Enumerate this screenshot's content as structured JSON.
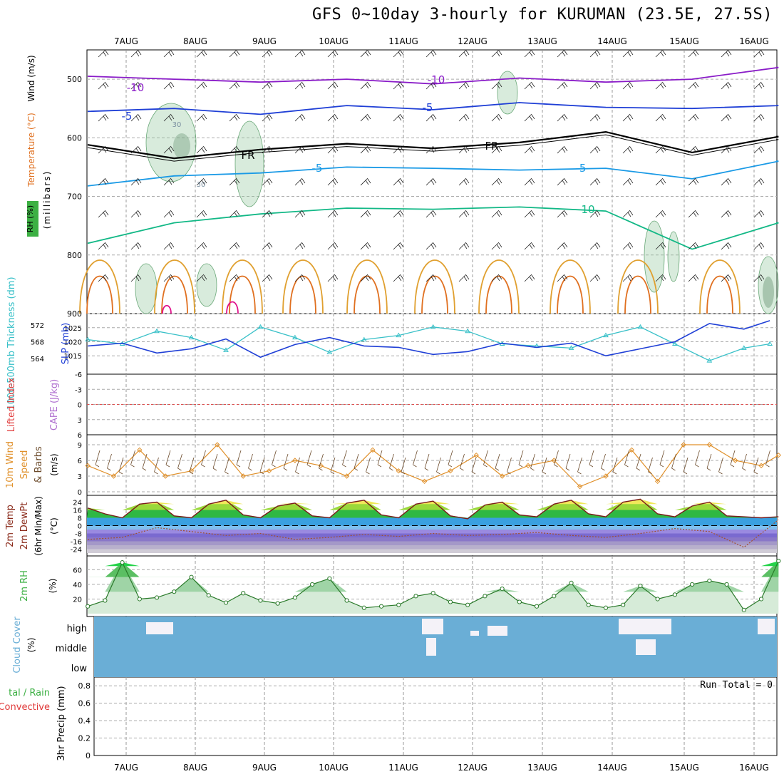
{
  "title": "GFS 0~10day 3-hourly for KURUMAN (23.5E, 27.5S)",
  "x_dates": [
    "7AUG",
    "8AUG",
    "9AUG",
    "10AUG",
    "11AUG",
    "12AUG",
    "13AUG",
    "14AUG",
    "15AUG",
    "16AUG"
  ],
  "colors": {
    "purple": "#8a1cc8",
    "blue": "#1f3fd6",
    "lightblue": "#1a9ae6",
    "teal": "#12b886",
    "orange": "#e0a030",
    "darkorange": "#e07020",
    "magenta": "#e0108a",
    "cyan": "#38c0c8",
    "slp": "#1f3fd6",
    "wind": "#e0902a",
    "rh": "#3cb043",
    "cloud": "#6aaed6",
    "dashed_red": "#e05050"
  },
  "chart_data": [
    {
      "type": "line",
      "panel": "upper-air",
      "ylabel_parts": [
        "RH (%)",
        "Temperature (°C)",
        "Wind (m/s)"
      ],
      "ylabel2": "(millibars)",
      "yticks": [
        500,
        600,
        700,
        800,
        900
      ],
      "ylim": [
        450,
        900
      ],
      "contour_labels": [
        "-10",
        "-10",
        "-5",
        "-5",
        "FR",
        "FR",
        "-5",
        "-5",
        "10",
        "30",
        "30"
      ],
      "isotherms": [
        {
          "name": "-10",
          "x": [
            0,
            10,
            20,
            30,
            40,
            50,
            60,
            70,
            80
          ],
          "p": [
            495,
            500,
            505,
            500,
            508,
            498,
            505,
            500,
            480
          ]
        },
        {
          "name": "-5",
          "x": [
            0,
            10,
            20,
            30,
            40,
            50,
            60,
            70,
            80
          ],
          "p": [
            555,
            550,
            560,
            545,
            552,
            540,
            548,
            550,
            545
          ]
        },
        {
          "name": "FR",
          "x": [
            0,
            10,
            20,
            30,
            40,
            50,
            60,
            70,
            80
          ],
          "p": [
            612,
            635,
            620,
            610,
            618,
            608,
            590,
            625,
            598
          ]
        },
        {
          "name": "5",
          "x": [
            0,
            10,
            20,
            30,
            40,
            50,
            60,
            70,
            80
          ],
          "p": [
            682,
            665,
            660,
            650,
            652,
            655,
            652,
            670,
            640
          ]
        },
        {
          "name": "10",
          "x": [
            0,
            10,
            20,
            30,
            40,
            50,
            60,
            70,
            80
          ],
          "p": [
            780,
            745,
            730,
            720,
            722,
            718,
            725,
            790,
            745
          ]
        }
      ]
    },
    {
      "type": "line",
      "panel": "thickness-slp",
      "ylabel_left": "1000-500mb Thickness (dm)",
      "ylabel_right": "SLP (mb)",
      "yticks_left": [
        572,
        568,
        564
      ],
      "yticks_right": [
        1025,
        1020,
        1015
      ],
      "series": [
        {
          "name": "Thickness",
          "unit": "dm",
          "x": [
            0,
            4,
            8,
            12,
            16,
            20,
            24,
            28,
            32,
            36,
            40,
            44,
            48,
            52,
            56,
            60,
            64,
            68,
            72,
            76,
            79
          ],
          "values": [
            568.5,
            567.5,
            570.5,
            569.0,
            566.0,
            571.5,
            569.0,
            565.5,
            568.5,
            569.5,
            571.5,
            570.5,
            567.5,
            567.0,
            566.5,
            569.5,
            571.5,
            567.5,
            563.5,
            566.5,
            567.5
          ]
        },
        {
          "name": "SLP",
          "unit": "mb",
          "x": [
            0,
            4,
            8,
            12,
            16,
            20,
            24,
            28,
            32,
            36,
            40,
            44,
            48,
            52,
            56,
            60,
            64,
            68,
            72,
            76,
            79
          ],
          "values": [
            1018.5,
            1019.5,
            1016.0,
            1017.5,
            1021.0,
            1014.5,
            1019.0,
            1021.5,
            1018.5,
            1018.0,
            1015.5,
            1016.5,
            1019.5,
            1018.0,
            1019.5,
            1015.0,
            1017.5,
            1020.0,
            1026.5,
            1024.5,
            1027.5
          ]
        }
      ]
    },
    {
      "type": "line",
      "panel": "instability",
      "ylabel_left": "Lifted Index",
      "ylabel_right": "CAPE (J/kg)",
      "yticks": [
        "-6",
        "-3",
        "0",
        "3",
        "6"
      ],
      "ylim": [
        -6,
        6
      ]
    },
    {
      "type": "line",
      "panel": "wind10m",
      "ylabel": "10m Wind Speed & Barbs",
      "unit": "(m/s)",
      "yticks": [
        9,
        6,
        3,
        0
      ],
      "ylim": [
        0,
        10.5
      ],
      "series": [
        {
          "name": "10m Wind Speed",
          "x": [
            0,
            3,
            6,
            9,
            12,
            15,
            18,
            21,
            24,
            27,
            30,
            33,
            36,
            39,
            42,
            45,
            48,
            51,
            54,
            57,
            60,
            63,
            66,
            69,
            72,
            75,
            78,
            80
          ],
          "values": [
            5,
            3,
            8,
            3,
            4,
            9,
            3,
            4,
            6,
            5,
            3,
            8,
            4,
            2,
            4,
            7,
            3,
            5,
            6,
            1,
            3,
            8,
            2,
            9,
            9,
            6,
            5,
            7
          ]
        }
      ]
    },
    {
      "type": "area",
      "panel": "temperature",
      "ylabel": "2m Temp 2m DewPt (6hr Min/Max)",
      "unit": "(°C)",
      "yticks": [
        24,
        16,
        8,
        0,
        -8,
        -16,
        -24
      ],
      "ylim": [
        -28,
        28
      ],
      "series": [
        {
          "name": "2m Temp",
          "x": [
            0,
            2,
            4,
            6,
            8,
            10,
            12,
            14,
            16,
            18,
            20,
            22,
            24,
            26,
            28,
            30,
            32,
            34,
            36,
            38,
            40,
            42,
            44,
            46,
            48,
            50,
            52,
            54,
            56,
            58,
            60,
            62,
            64,
            66,
            68,
            70,
            72,
            74,
            76,
            78,
            80
          ],
          "values": [
            18,
            12,
            8,
            22,
            24,
            10,
            8,
            22,
            26,
            11,
            8,
            20,
            23,
            10,
            8,
            23,
            26,
            11,
            8,
            22,
            25,
            10,
            7,
            21,
            24,
            11,
            9,
            22,
            26,
            12,
            9,
            24,
            27,
            12,
            9,
            20,
            24,
            10,
            9,
            8,
            9
          ]
        },
        {
          "name": "2m DewPt",
          "x": [
            0,
            4,
            8,
            12,
            16,
            20,
            24,
            28,
            32,
            36,
            40,
            44,
            48,
            52,
            56,
            60,
            64,
            68,
            72,
            76,
            80
          ],
          "values": [
            -14,
            -12,
            -2,
            -6,
            -10,
            -8,
            -14,
            -12,
            -9,
            -11,
            -8,
            -10,
            -9,
            -7,
            -10,
            -12,
            -8,
            -3,
            -6,
            -22,
            6
          ]
        }
      ]
    },
    {
      "type": "area",
      "panel": "rh2m",
      "ylabel": "2m RH",
      "unit": "(%)",
      "yticks": [
        60,
        40,
        20
      ],
      "ylim": [
        0,
        75
      ],
      "series": [
        {
          "name": "2m RH",
          "x": [
            0,
            2,
            4,
            6,
            8,
            10,
            12,
            14,
            16,
            18,
            20,
            22,
            24,
            26,
            28,
            30,
            32,
            34,
            36,
            38,
            40,
            42,
            44,
            46,
            48,
            50,
            52,
            54,
            56,
            58,
            60,
            62,
            64,
            66,
            68,
            70,
            72,
            74,
            76,
            78,
            80
          ],
          "values": [
            10,
            18,
            70,
            20,
            22,
            30,
            50,
            25,
            15,
            28,
            18,
            14,
            22,
            40,
            48,
            18,
            8,
            10,
            12,
            24,
            28,
            16,
            12,
            24,
            34,
            16,
            10,
            24,
            42,
            12,
            8,
            12,
            38,
            20,
            26,
            40,
            45,
            40,
            5,
            20,
            72
          ]
        }
      ]
    },
    {
      "type": "heatmap",
      "panel": "cloud",
      "ylabel": "Cloud Cover",
      "unit": "(%)",
      "levels": [
        "high",
        "middle",
        "low"
      ]
    },
    {
      "type": "bar",
      "panel": "precip",
      "ylabel": "Total / Rain Convective",
      "ylabel2": "3hr Precip (mm)",
      "yticks": [
        0.8,
        0.6,
        0.4,
        0.2,
        0
      ],
      "ylim": [
        0,
        0.9
      ],
      "run_total": "Run Total = 0",
      "values": []
    }
  ]
}
